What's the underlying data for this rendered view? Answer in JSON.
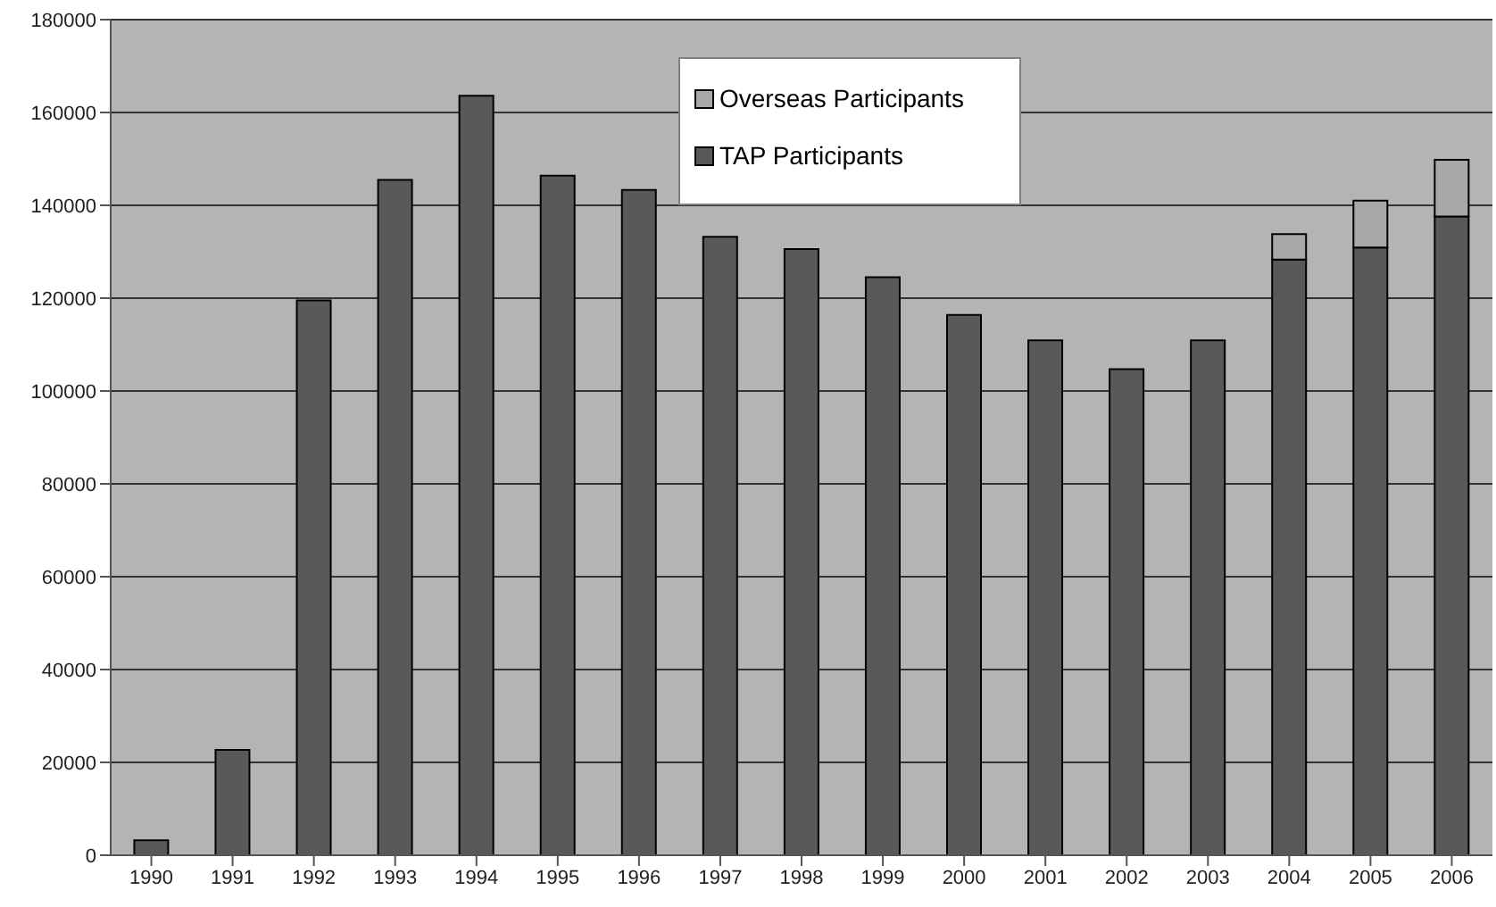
{
  "chart_data": {
    "type": "bar",
    "stacked": true,
    "categories": [
      "1990",
      "1991",
      "1992",
      "1993",
      "1994",
      "1995",
      "1996",
      "1997",
      "1998",
      "1999",
      "2000",
      "2001",
      "2002",
      "2003",
      "2004",
      "2005",
      "2006"
    ],
    "series": [
      {
        "name": "TAP Participants",
        "color": "#595959",
        "values": [
          3200,
          22700,
          119500,
          145500,
          163600,
          146400,
          143300,
          133200,
          130600,
          124500,
          116400,
          110900,
          104700,
          110900,
          128300,
          130900,
          137600
        ]
      },
      {
        "name": "Overseas Participants",
        "color": "#a8a8a8",
        "values": [
          null,
          null,
          null,
          null,
          null,
          null,
          null,
          null,
          null,
          null,
          null,
          null,
          null,
          null,
          5500,
          10100,
          12200
        ]
      }
    ],
    "ylim": [
      0,
      180000
    ],
    "yticks": [
      0,
      20000,
      40000,
      60000,
      80000,
      100000,
      120000,
      140000,
      160000,
      180000
    ],
    "grid": "y",
    "legend": "top"
  }
}
